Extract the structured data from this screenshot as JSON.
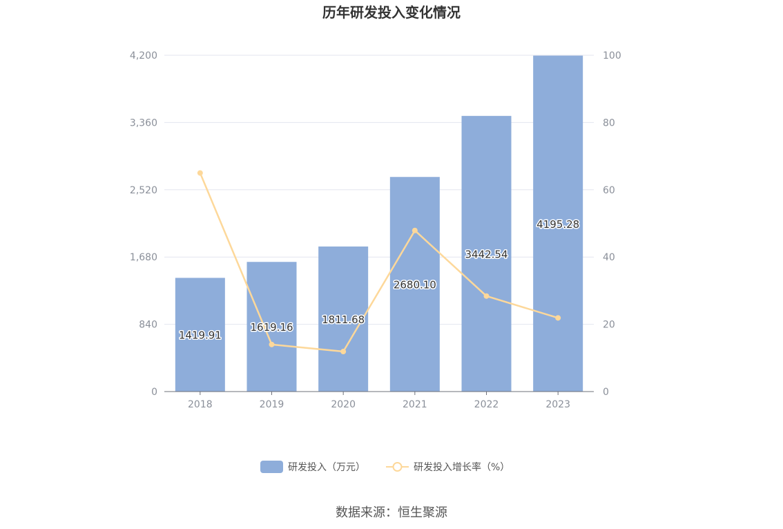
{
  "chart_data": {
    "type": "bar",
    "title": "历年研发投入变化情况",
    "categories": [
      "2018",
      "2019",
      "2020",
      "2021",
      "2022",
      "2023"
    ],
    "series": [
      {
        "name": "研发投入（万元）",
        "type": "bar",
        "axis": "left",
        "values": [
          1419.91,
          1619.16,
          1811.68,
          2680.1,
          3442.54,
          4195.28
        ],
        "labels": [
          "1419.91",
          "1619.16",
          "1811.68",
          "2680.10",
          "3442.54",
          "4195.28"
        ],
        "color": "#8eadda"
      },
      {
        "name": "研发投入增长率（%）",
        "type": "line",
        "axis": "right",
        "values": [
          65.0,
          14.0,
          11.9,
          47.9,
          28.4,
          21.9
        ],
        "color": "#fdd89a"
      }
    ],
    "y_left": {
      "min": 0,
      "max": 4200,
      "ticks": [
        "0",
        "840",
        "1,680",
        "2,520",
        "3,360",
        "4,200"
      ]
    },
    "y_right": {
      "min": 0,
      "max": 100,
      "ticks": [
        "0",
        "20",
        "40",
        "60",
        "80",
        "100"
      ]
    },
    "grid": true,
    "legend_position": "bottom-center",
    "xlabel": "",
    "ylabel": ""
  },
  "source": "数据来源：恒生聚源",
  "colors": {
    "bar": "#8eadda",
    "line": "#fdd89a",
    "grid": "#e3e6ef",
    "axis": "#6e7079"
  }
}
